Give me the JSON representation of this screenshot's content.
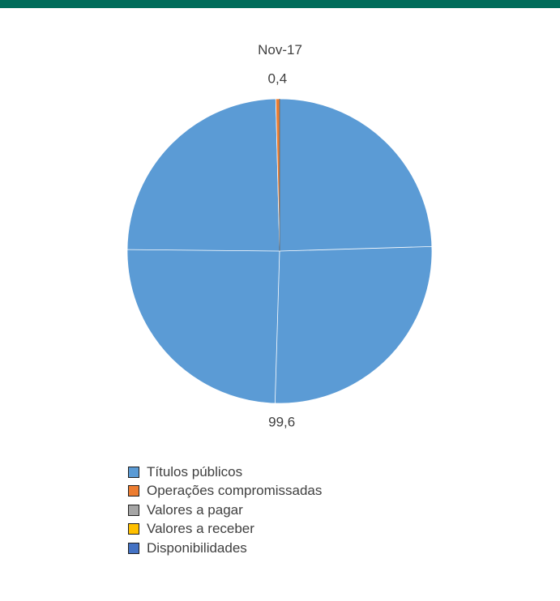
{
  "colors": {
    "top_bar": "#006c5a"
  },
  "chart_data": {
    "type": "pie",
    "title": "Nov-17",
    "start_angle_deg": 0,
    "slices": [
      {
        "name": "Títulos públicos",
        "value": 99.6,
        "label": "99,6",
        "color": "#5b9bd5"
      },
      {
        "name": "Operações compromissadas",
        "value": 0.4,
        "label": "0,4",
        "color": "#ed7d31"
      },
      {
        "name": "Valores a pagar",
        "value": 0,
        "label": "",
        "color": "#a5a5a5"
      },
      {
        "name": "Valores a receber",
        "value": 0,
        "label": "",
        "color": "#ffc000"
      },
      {
        "name": "Disponibilidades",
        "value": 0,
        "label": "",
        "color": "#4472c4"
      }
    ],
    "legend_position": "bottom"
  }
}
